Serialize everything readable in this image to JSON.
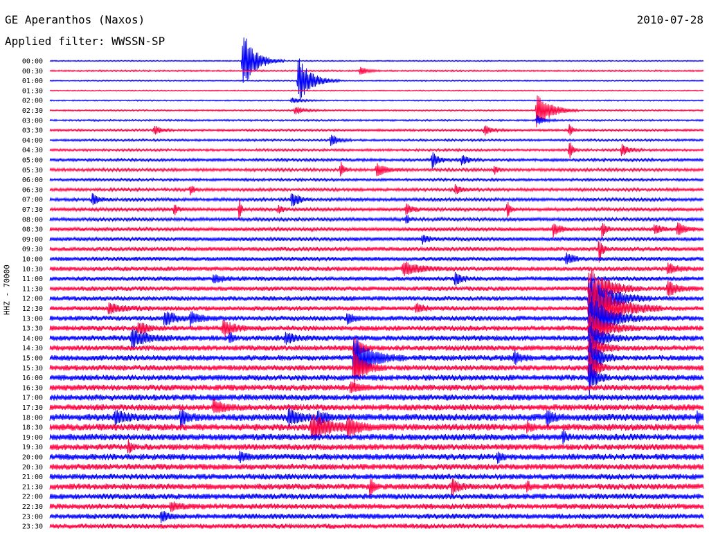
{
  "header": {
    "station": "GE Aperanthos (Naxos)",
    "date": "2010-07-28",
    "filter_prefix": "Applied filter:",
    "filter": "WWSSN-SP"
  },
  "channel_label": "HHZ - 70000",
  "chart_data": {
    "type": "line",
    "subtype": "helicorder (seismogram drum plot)",
    "title": "GE Aperanthos (Naxos)",
    "date": "2010-07-28",
    "filter": "WWSSN-SP",
    "ylabel": "HHZ - 70000",
    "minutes_per_line": 30,
    "line_colors": [
      "#0000ff",
      "#ff0040"
    ],
    "row_labels": [
      "00:00",
      "00:30",
      "01:00",
      "01:30",
      "02:00",
      "02:30",
      "03:00",
      "03:30",
      "04:00",
      "04:30",
      "05:00",
      "05:30",
      "06:00",
      "06:30",
      "07:00",
      "07:30",
      "08:00",
      "08:30",
      "09:00",
      "09:30",
      "10:00",
      "10:30",
      "11:00",
      "11:30",
      "12:00",
      "12:30",
      "13:00",
      "13:30",
      "14:00",
      "14:30",
      "15:00",
      "15:30",
      "16:00",
      "16:30",
      "17:00",
      "17:30",
      "18:00",
      "18:30",
      "19:00",
      "19:30",
      "20:00",
      "20:30",
      "21:00",
      "21:30",
      "22:00",
      "22:30",
      "23:00",
      "23:30"
    ],
    "noise_level": [
      0.6,
      0.8,
      0.6,
      0.5,
      0.6,
      0.8,
      0.9,
      1.1,
      1.1,
      1.2,
      1.4,
      1.5,
      1.3,
      1.5,
      1.6,
      1.7,
      1.7,
      1.9,
      1.9,
      2.1,
      2.2,
      2.3,
      2.3,
      2.3,
      2.4,
      2.4,
      2.6,
      2.7,
      2.8,
      2.8,
      2.9,
      2.9,
      3.0,
      3.1,
      3.2,
      3.2,
      3.6,
      3.5,
      3.3,
      3.2,
      3.2,
      3.1,
      3.0,
      3.1,
      3.0,
      2.9,
      2.8,
      2.6
    ],
    "events": [
      {
        "row": 0,
        "pos": 0.295,
        "amp": 45,
        "dur": 0.04
      },
      {
        "row": 2,
        "pos": 0.38,
        "amp": 35,
        "dur": 0.04
      },
      {
        "row": 1,
        "pos": 0.475,
        "amp": 7,
        "dur": 0.02
      },
      {
        "row": 4,
        "pos": 0.37,
        "amp": 5,
        "dur": 0.03
      },
      {
        "row": 5,
        "pos": 0.375,
        "amp": 6,
        "dur": 0.03
      },
      {
        "row": 5,
        "pos": 0.745,
        "amp": 30,
        "dur": 0.04
      },
      {
        "row": 6,
        "pos": 0.745,
        "amp": 8,
        "dur": 0.02
      },
      {
        "row": 7,
        "pos": 0.16,
        "amp": 8,
        "dur": 0.02
      },
      {
        "row": 7,
        "pos": 0.665,
        "amp": 8,
        "dur": 0.02
      },
      {
        "row": 7,
        "pos": 0.795,
        "amp": 10,
        "dur": 0.01
      },
      {
        "row": 8,
        "pos": 0.43,
        "amp": 10,
        "dur": 0.02
      },
      {
        "row": 9,
        "pos": 0.795,
        "amp": 16,
        "dur": 0.01
      },
      {
        "row": 9,
        "pos": 0.875,
        "amp": 10,
        "dur": 0.02
      },
      {
        "row": 10,
        "pos": 0.585,
        "amp": 12,
        "dur": 0.02
      },
      {
        "row": 10,
        "pos": 0.63,
        "amp": 8,
        "dur": 0.02
      },
      {
        "row": 11,
        "pos": 0.445,
        "amp": 14,
        "dur": 0.01
      },
      {
        "row": 11,
        "pos": 0.5,
        "amp": 10,
        "dur": 0.03
      },
      {
        "row": 11,
        "pos": 0.68,
        "amp": 8,
        "dur": 0.01
      },
      {
        "row": 13,
        "pos": 0.215,
        "amp": 8,
        "dur": 0.01
      },
      {
        "row": 13,
        "pos": 0.62,
        "amp": 7,
        "dur": 0.02
      },
      {
        "row": 14,
        "pos": 0.37,
        "amp": 15,
        "dur": 0.02
      },
      {
        "row": 14,
        "pos": 0.065,
        "amp": 8,
        "dur": 0.02
      },
      {
        "row": 15,
        "pos": 0.19,
        "amp": 10,
        "dur": 0.01
      },
      {
        "row": 15,
        "pos": 0.29,
        "amp": 20,
        "dur": 0.005
      },
      {
        "row": 15,
        "pos": 0.35,
        "amp": 8,
        "dur": 0.01
      },
      {
        "row": 15,
        "pos": 0.545,
        "amp": 8,
        "dur": 0.02
      },
      {
        "row": 15,
        "pos": 0.7,
        "amp": 12,
        "dur": 0.01
      },
      {
        "row": 16,
        "pos": 0.545,
        "amp": 8,
        "dur": 0.01
      },
      {
        "row": 17,
        "pos": 0.77,
        "amp": 12,
        "dur": 0.02
      },
      {
        "row": 17,
        "pos": 0.845,
        "amp": 15,
        "dur": 0.01
      },
      {
        "row": 17,
        "pos": 0.925,
        "amp": 8,
        "dur": 0.02
      },
      {
        "row": 17,
        "pos": 0.96,
        "amp": 12,
        "dur": 0.02
      },
      {
        "row": 18,
        "pos": 0.57,
        "amp": 6,
        "dur": 0.02
      },
      {
        "row": 19,
        "pos": 0.84,
        "amp": 20,
        "dur": 0.01
      },
      {
        "row": 20,
        "pos": 0.79,
        "amp": 10,
        "dur": 0.02
      },
      {
        "row": 21,
        "pos": 0.54,
        "amp": 10,
        "dur": 0.05
      },
      {
        "row": 21,
        "pos": 0.945,
        "amp": 8,
        "dur": 0.03
      },
      {
        "row": 22,
        "pos": 0.62,
        "amp": 10,
        "dur": 0.02
      },
      {
        "row": 22,
        "pos": 0.25,
        "amp": 6,
        "dur": 0.03
      },
      {
        "row": 23,
        "pos": 0.945,
        "amp": 12,
        "dur": 0.03
      },
      {
        "row": 23,
        "pos": 0.825,
        "amp": 40,
        "dur": 0.05
      },
      {
        "row": 24,
        "pos": 0.825,
        "amp": 40,
        "dur": 0.06
      },
      {
        "row": 25,
        "pos": 0.825,
        "amp": 50,
        "dur": 0.07
      },
      {
        "row": 26,
        "pos": 0.825,
        "amp": 35,
        "dur": 0.06
      },
      {
        "row": 27,
        "pos": 0.825,
        "amp": 25,
        "dur": 0.05
      },
      {
        "row": 28,
        "pos": 0.825,
        "amp": 25,
        "dur": 0.04
      },
      {
        "row": 29,
        "pos": 0.825,
        "amp": 25,
        "dur": 0.03
      },
      {
        "row": 30,
        "pos": 0.825,
        "amp": 30,
        "dur": 0.03
      },
      {
        "row": 31,
        "pos": 0.825,
        "amp": 30,
        "dur": 0.02
      },
      {
        "row": 32,
        "pos": 0.825,
        "amp": 25,
        "dur": 0.02
      },
      {
        "row": 25,
        "pos": 0.09,
        "amp": 8,
        "dur": 0.04
      },
      {
        "row": 25,
        "pos": 0.56,
        "amp": 8,
        "dur": 0.02
      },
      {
        "row": 26,
        "pos": 0.175,
        "amp": 12,
        "dur": 0.03
      },
      {
        "row": 26,
        "pos": 0.215,
        "amp": 10,
        "dur": 0.03
      },
      {
        "row": 26,
        "pos": 0.455,
        "amp": 8,
        "dur": 0.02
      },
      {
        "row": 27,
        "pos": 0.265,
        "amp": 12,
        "dur": 0.03
      },
      {
        "row": 27,
        "pos": 0.135,
        "amp": 10,
        "dur": 0.03
      },
      {
        "row": 28,
        "pos": 0.125,
        "amp": 15,
        "dur": 0.04
      },
      {
        "row": 28,
        "pos": 0.36,
        "amp": 8,
        "dur": 0.03
      },
      {
        "row": 28,
        "pos": 0.275,
        "amp": 10,
        "dur": 0.01
      },
      {
        "row": 30,
        "pos": 0.465,
        "amp": 35,
        "dur": 0.05
      },
      {
        "row": 29,
        "pos": 0.465,
        "amp": 20,
        "dur": 0.02
      },
      {
        "row": 31,
        "pos": 0.465,
        "amp": 30,
        "dur": 0.03
      },
      {
        "row": 30,
        "pos": 0.71,
        "amp": 10,
        "dur": 0.02
      },
      {
        "row": 33,
        "pos": 0.46,
        "amp": 8,
        "dur": 0.02
      },
      {
        "row": 35,
        "pos": 0.25,
        "amp": 10,
        "dur": 0.03
      },
      {
        "row": 36,
        "pos": 0.1,
        "amp": 10,
        "dur": 0.03
      },
      {
        "row": 36,
        "pos": 0.2,
        "amp": 12,
        "dur": 0.02
      },
      {
        "row": 36,
        "pos": 0.365,
        "amp": 15,
        "dur": 0.03
      },
      {
        "row": 36,
        "pos": 0.41,
        "amp": 12,
        "dur": 0.02
      },
      {
        "row": 36,
        "pos": 0.76,
        "amp": 12,
        "dur": 0.02
      },
      {
        "row": 36,
        "pos": 0.99,
        "amp": 10,
        "dur": 0.01
      },
      {
        "row": 37,
        "pos": 0.4,
        "amp": 18,
        "dur": 0.06
      },
      {
        "row": 37,
        "pos": 0.455,
        "amp": 15,
        "dur": 0.03
      },
      {
        "row": 37,
        "pos": 0.73,
        "amp": 10,
        "dur": 0.01
      },
      {
        "row": 38,
        "pos": 0.785,
        "amp": 10,
        "dur": 0.01
      },
      {
        "row": 39,
        "pos": 0.12,
        "amp": 10,
        "dur": 0.01
      },
      {
        "row": 40,
        "pos": 0.29,
        "amp": 8,
        "dur": 0.02
      },
      {
        "row": 40,
        "pos": 0.685,
        "amp": 10,
        "dur": 0.01
      },
      {
        "row": 43,
        "pos": 0.49,
        "amp": 15,
        "dur": 0.01
      },
      {
        "row": 43,
        "pos": 0.615,
        "amp": 12,
        "dur": 0.02
      },
      {
        "row": 43,
        "pos": 0.73,
        "amp": 8,
        "dur": 0.01
      },
      {
        "row": 45,
        "pos": 0.185,
        "amp": 8,
        "dur": 0.02
      },
      {
        "row": 46,
        "pos": 0.17,
        "amp": 8,
        "dur": 0.02
      }
    ]
  }
}
